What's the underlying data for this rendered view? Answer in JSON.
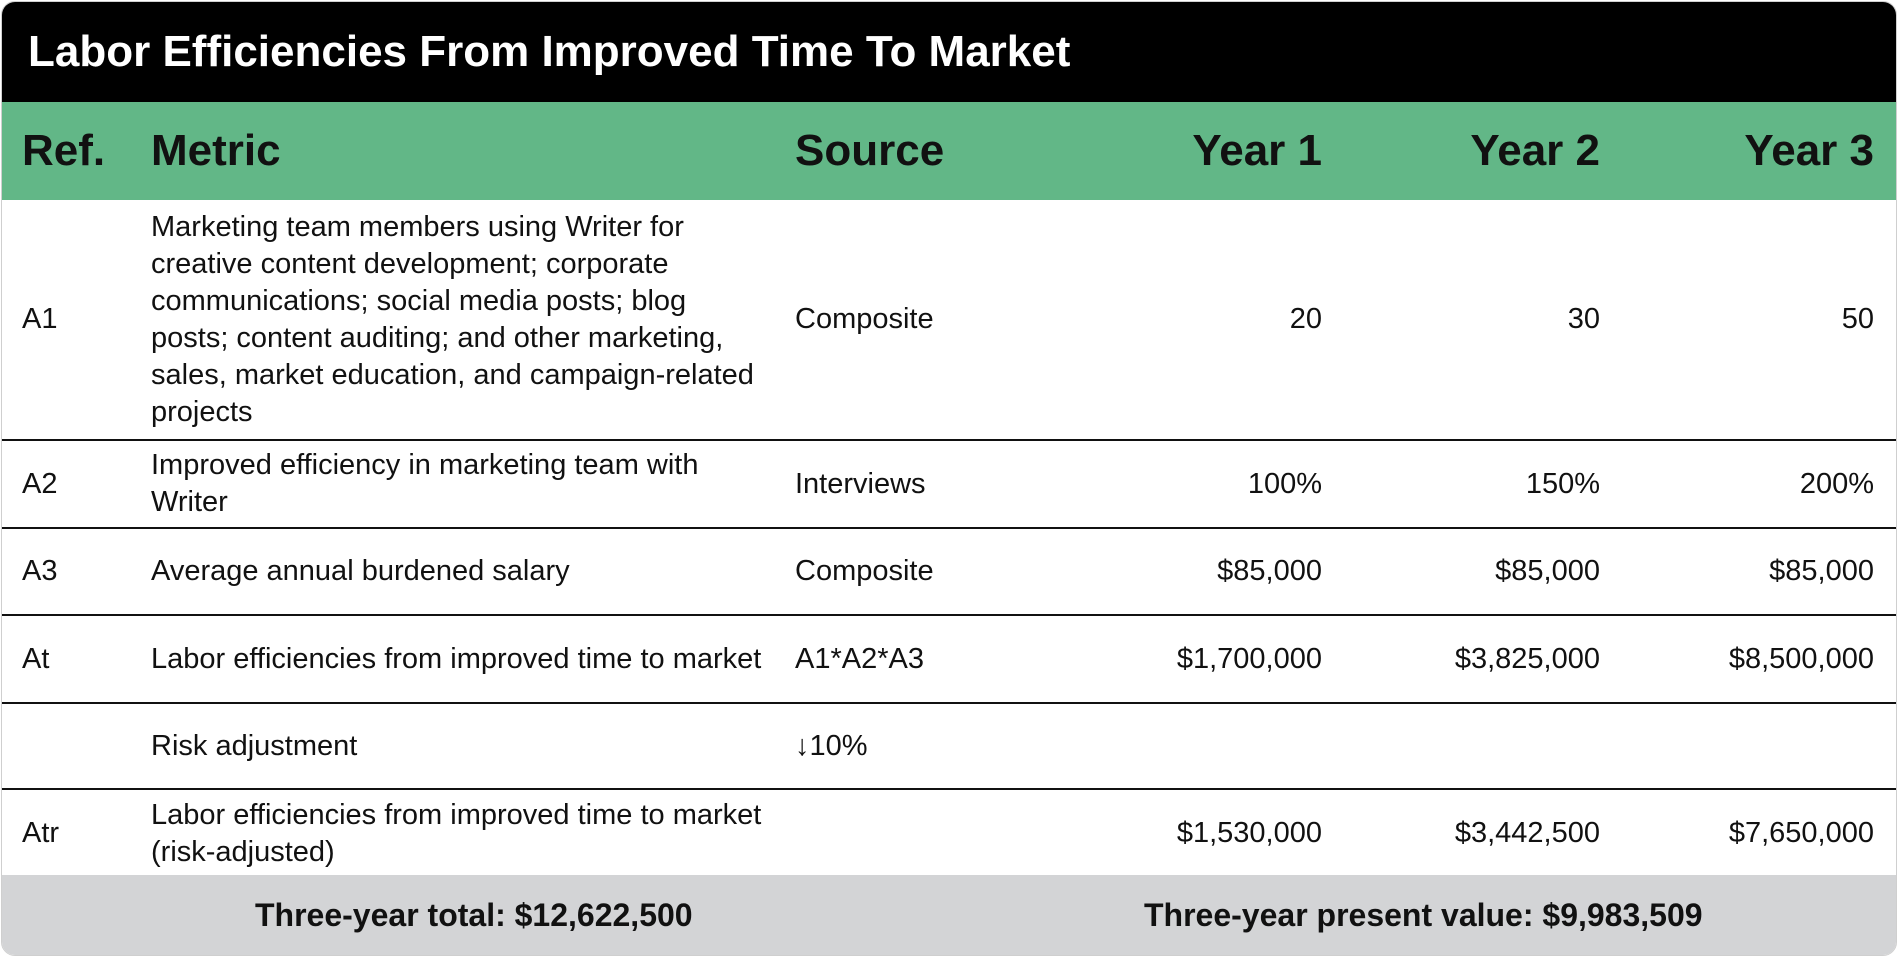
{
  "title": "Labor Efficiencies From Improved Time To Market",
  "columns": {
    "ref": "Ref.",
    "metric": "Metric",
    "source": "Source",
    "year1": "Year 1",
    "year2": "Year 2",
    "year3": "Year 3"
  },
  "rows": [
    {
      "ref": "A1",
      "metric": "Marketing team members using Writer for creative content development; corporate communications; social media posts; blog posts; content auditing; and other marketing, sales, market education, and campaign-related projects",
      "source": "Composite",
      "year1": "20",
      "year2": "30",
      "year3": "50"
    },
    {
      "ref": "A2",
      "metric": "Improved efficiency in marketing team with Writer",
      "source": "Interviews",
      "year1": "100%",
      "year2": "150%",
      "year3": "200%"
    },
    {
      "ref": "A3",
      "metric": "Average annual burdened salary",
      "source": "Composite",
      "year1": "$85,000",
      "year2": "$85,000",
      "year3": "$85,000"
    },
    {
      "ref": "At",
      "metric": "Labor efficiencies from improved time to market",
      "source": "A1*A2*A3",
      "year1": "$1,700,000",
      "year2": "$3,825,000",
      "year3": "$8,500,000"
    },
    {
      "ref": "",
      "metric": "Risk adjustment",
      "source": "↓10%",
      "year1": "",
      "year2": "",
      "year3": ""
    },
    {
      "ref": "Atr",
      "metric": "Labor efficiencies from improved time to market (risk-adjusted)",
      "source": "",
      "year1": "$1,530,000",
      "year2": "$3,442,500",
      "year3": "$7,650,000"
    }
  ],
  "footer": {
    "total": "Three-year total: $12,622,500",
    "present_value": "Three-year present value: $9,983,509"
  },
  "colors": {
    "title_bg": "#000000",
    "header_bg": "#62b787",
    "footer_bg": "#d3d4d6"
  }
}
